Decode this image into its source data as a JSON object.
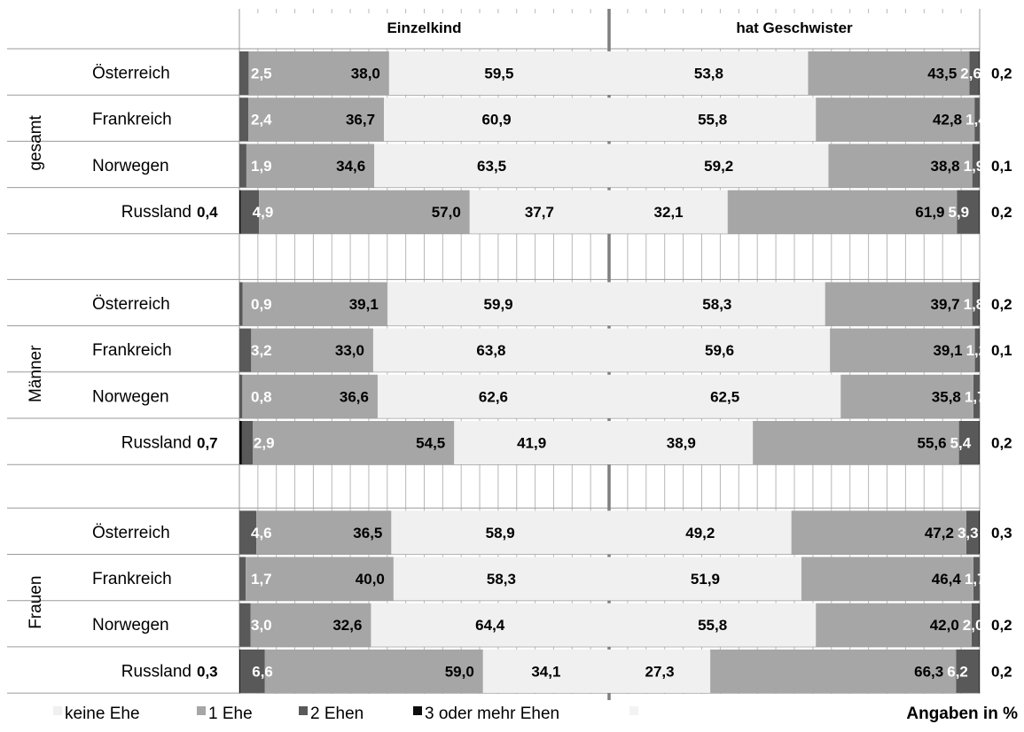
{
  "chart_data": {
    "type": "bar",
    "subtype": "diverging-stacked-horizontal",
    "panels": [
      "Einzelkind",
      "hat Geschwister"
    ],
    "groups": [
      {
        "label": "gesamt",
        "rows": [
          {
            "country": "Österreich",
            "einzelkind": {
              "keine_ehe": 59.5,
              "eine_ehe": 38.0,
              "zwei_ehen": 2.5,
              "drei_plus": null
            },
            "geschwister": {
              "keine_ehe": 53.8,
              "eine_ehe": 43.5,
              "zwei_ehen": 2.6,
              "drei_plus": 0.2
            }
          },
          {
            "country": "Frankreich",
            "einzelkind": {
              "keine_ehe": 60.9,
              "eine_ehe": 36.7,
              "zwei_ehen": 2.4,
              "drei_plus": null
            },
            "geschwister": {
              "keine_ehe": 55.8,
              "eine_ehe": 42.8,
              "zwei_ehen": 1.4,
              "drei_plus": null
            }
          },
          {
            "country": "Norwegen",
            "einzelkind": {
              "keine_ehe": 63.5,
              "eine_ehe": 34.6,
              "zwei_ehen": 1.9,
              "drei_plus": null
            },
            "geschwister": {
              "keine_ehe": 59.2,
              "eine_ehe": 38.8,
              "zwei_ehen": 1.9,
              "drei_plus": 0.1
            }
          },
          {
            "country": "Russland",
            "einzelkind": {
              "keine_ehe": 37.7,
              "eine_ehe": 57.0,
              "zwei_ehen": 4.9,
              "drei_plus": 0.4
            },
            "geschwister": {
              "keine_ehe": 32.1,
              "eine_ehe": 61.9,
              "zwei_ehen": 5.9,
              "drei_plus": 0.2
            }
          }
        ]
      },
      {
        "label": "Männer",
        "rows": [
          {
            "country": "Österreich",
            "einzelkind": {
              "keine_ehe": 59.9,
              "eine_ehe": 39.1,
              "zwei_ehen": 0.9,
              "drei_plus": null
            },
            "geschwister": {
              "keine_ehe": 58.3,
              "eine_ehe": 39.7,
              "zwei_ehen": 1.8,
              "drei_plus": 0.2
            }
          },
          {
            "country": "Frankreich",
            "einzelkind": {
              "keine_ehe": 63.8,
              "eine_ehe": 33.0,
              "zwei_ehen": 3.2,
              "drei_plus": null
            },
            "geschwister": {
              "keine_ehe": 59.6,
              "eine_ehe": 39.1,
              "zwei_ehen": 1.2,
              "drei_plus": 0.1
            }
          },
          {
            "country": "Norwegen",
            "einzelkind": {
              "keine_ehe": 62.6,
              "eine_ehe": 36.6,
              "zwei_ehen": 0.8,
              "drei_plus": null
            },
            "geschwister": {
              "keine_ehe": 62.5,
              "eine_ehe": 35.8,
              "zwei_ehen": 1.7,
              "drei_plus": null
            }
          },
          {
            "country": "Russland",
            "einzelkind": {
              "keine_ehe": 41.9,
              "eine_ehe": 54.5,
              "zwei_ehen": 2.9,
              "drei_plus": 0.7
            },
            "geschwister": {
              "keine_ehe": 38.9,
              "eine_ehe": 55.6,
              "zwei_ehen": 5.4,
              "drei_plus": 0.2
            }
          }
        ]
      },
      {
        "label": "Frauen",
        "rows": [
          {
            "country": "Österreich",
            "einzelkind": {
              "keine_ehe": 58.9,
              "eine_ehe": 36.5,
              "zwei_ehen": 4.6,
              "drei_plus": null
            },
            "geschwister": {
              "keine_ehe": 49.2,
              "eine_ehe": 47.2,
              "zwei_ehen": 3.3,
              "drei_plus": 0.3
            }
          },
          {
            "country": "Frankreich",
            "einzelkind": {
              "keine_ehe": 58.3,
              "eine_ehe": 40.0,
              "zwei_ehen": 1.7,
              "drei_plus": null
            },
            "geschwister": {
              "keine_ehe": 51.9,
              "eine_ehe": 46.4,
              "zwei_ehen": 1.7,
              "drei_plus": null
            }
          },
          {
            "country": "Norwegen",
            "einzelkind": {
              "keine_ehe": 64.4,
              "eine_ehe": 32.6,
              "zwei_ehen": 3.0,
              "drei_plus": null
            },
            "geschwister": {
              "keine_ehe": 55.8,
              "eine_ehe": 42.0,
              "zwei_ehen": 2.0,
              "drei_plus": 0.2
            }
          },
          {
            "country": "Russland",
            "einzelkind": {
              "keine_ehe": 34.1,
              "eine_ehe": 59.0,
              "zwei_ehen": 6.6,
              "drei_plus": 0.3
            },
            "geschwister": {
              "keine_ehe": 27.3,
              "eine_ehe": 66.3,
              "zwei_ehen": 6.2,
              "drei_plus": 0.2
            }
          }
        ]
      }
    ],
    "legend": [
      {
        "key": "keine_ehe",
        "label": "keine Ehe",
        "color": "#f0f0f0"
      },
      {
        "key": "eine_ehe",
        "label": "1 Ehe",
        "color": "#a6a6a6"
      },
      {
        "key": "zwei_ehen",
        "label": "2 Ehen",
        "color": "#595959"
      },
      {
        "key": "drei_plus",
        "label": "3 oder mehr Ehen",
        "color": "#0d0d0d"
      }
    ],
    "note": "Angaben in %",
    "xlim": [
      0,
      100
    ],
    "grid": true
  }
}
